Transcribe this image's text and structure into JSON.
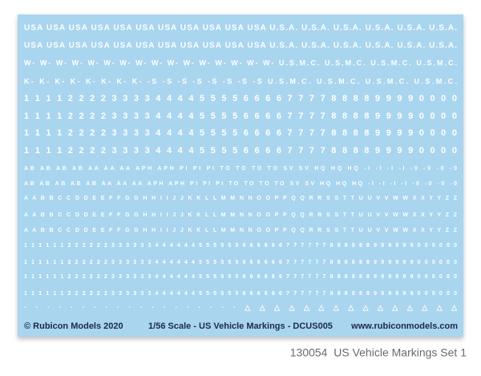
{
  "sheet": {
    "rows": [
      "USA USA USA USA USA USA USA USA USA USA USA U.S.A. U.S.A. U.S.A. U.S.A. U.S.A. U.S.A.",
      "USA USA USA USA USA USA USA USA USA USA USA U.S.A. U.S.A. U.S.A. U.S.A. U.S.A. U.S.A.",
      "W- W- W- W- W- W- W- W- W- W- W- W- W- W- W- W- U.S.M.C. U.S.M.C. U.S.M.C. U.S.M.C.",
      "K- K- K- K- K- K- K- K- -S -S -S -S -S -S -S -S U.S.M.C. U.S.M.C. U.S.M.C. U.S.M.C.",
      "1 1 1 1 2 2 2 2 3 3 3 3 4 4 4 4 5 5 5 5 6 6 6 6 7 7 7 7 8 8 8 8 9 9 9 9 0 0 0 0",
      "1 1 1 1 2 2 2 2 3 3 3 3 4 4 4 4 5 5 5 5 6 6 6 6 7 7 7 7 8 8 8 8 9 9 9 9 0 0 0 0",
      "1 1 1 1 2 2 2 2 3 3 3 3 4 4 4 4 5 5 5 5 6 6 6 6 7 7 7 7 8 8 8 8 9 9 9 9 0 0 0 0",
      "1 1 1 1 2 2 2 2 3 3 3 3 4 4 4 4 5 5 5 5 6 6 6 6 7 7 7 7 8 8 8 8 9 9 9 9 0 0 0 0",
      "AB AB AB AB AA AA AA APH APH PI PI PI TO TO TO TO SV SV HQ HQ HQ -I -I -I -I -0 -0 -0 -0",
      "AB AB AB AB AB AA AA AA APH APH PI PI PI TO TO TO TO SV SV HQ HQ HQ -I -I -I -I -0 -0 -0 -0",
      "A A B B C C D D E E F F G G H H I I J J K K L L M M N N O O P P Q Q R R S S T T U U V V W W X X Y Y Z Z",
      "A A B B C C D D E E F F G G H H I I J J K K L L M M N N O O P P Q Q R R S S T T U U V V W W X X Y Y Z Z",
      "A A B B C C D D E E F F G G H H I I J J K K L L M M N N O O P P Q Q R R S S T T U U V V W W X X Y Y Z Z",
      "1 1 1 1 1 1 2 2 2 2 2 2 3 3 3 3 3 3 4 4 4 4 4 4 5 5 5 5 5 5 6 6 6 6 6 6 7 7 7 7 7 7 8 8 8 8 8 8 9 9 9 9 9 9 0 0 0 0 0 0",
      "1 1 1 1 1 1 2 2 2 2 2 2 3 3 3 3 3 3 4 4 4 4 4 4 5 5 5 5 5 5 6 6 6 6 6 6 7 7 7 7 7 7 8 8 8 8 8 8 9 9 9 9 9 9 0 0 0 0 0 0",
      "1 1 1 1 1 1 2 2 2 2 2 2 3 3 3 3 3 3 4 4 4 4 4 4 5 5 5 5 5 5 6 6 6 6 6 6 7 7 7 7 7 7 8 8 8 8 8 8 9 9 9 9 9 9 0 0 0 0 0 0",
      "1 1 1 1 1 1 2 2 2 2 2 2 3 3 3 3 3 3 4 4 4 4 4 4 5 5 5 5 5 5 6 6 6 6 6 6 7 7 7 7 7 7 8 8 8 8 8 8 9 9 9 9 9 9 0 0 0 0 0 0",
      "· · · · · · · · · · · · · · · · · · · △ △ △ △ △ △ △ △ △ △ △ △ △ △ △"
    ],
    "footer": {
      "left": "© Rubicon Models 2020",
      "center": "1/56 Scale - US Vehicle Markings - DCUS005",
      "right": "www.rubiconmodels.com"
    }
  },
  "caption": "130054  US Vehicle Markings Set 1"
}
